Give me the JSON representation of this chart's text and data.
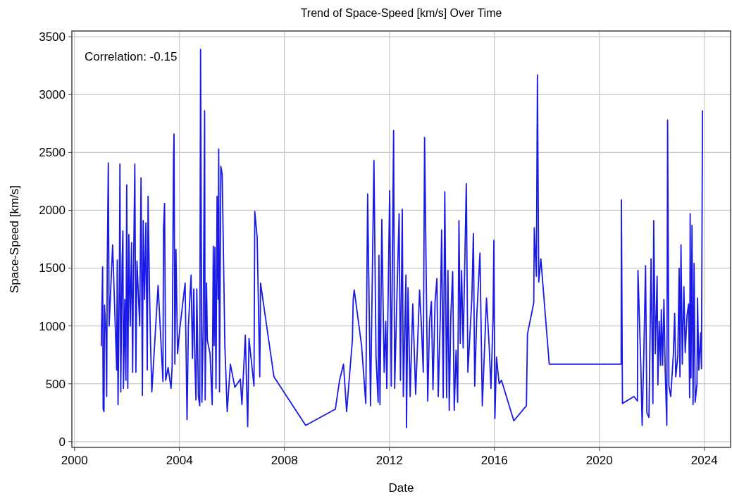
{
  "chart_data": {
    "type": "line",
    "title": "Trend of Space-Speed [km/s] Over Time",
    "xlabel": "Date",
    "ylabel": "Space-Speed [km/s]",
    "annotations": [
      "Correlation: -0.15"
    ],
    "xlim": [
      1999.9,
      2025
    ],
    "xticks": [
      2000,
      2004,
      2008,
      2012,
      2016,
      2020,
      2024
    ],
    "ylim": [
      -50,
      3550
    ],
    "yticks": [
      0,
      500,
      1000,
      1500,
      2000,
      2500,
      3000,
      3500
    ],
    "grid": true,
    "line_style": "solid",
    "series": [
      {
        "color": "#1a1ae6",
        "x": [
          2001.021,
          2001.072,
          2001.093,
          2001.124,
          2001.144,
          2001.196,
          2001.227,
          2001.247,
          2001.289,
          2001.32,
          2001.454,
          2001.608,
          2001.629,
          2001.66,
          2001.711,
          2001.732,
          2001.763,
          2001.814,
          2001.845,
          2001.866,
          2001.918,
          2001.959,
          2001.99,
          2002.031,
          2002.072,
          2002.124,
          2002.175,
          2002.216,
          2002.237,
          2002.299,
          2002.34,
          2002.381,
          2002.443,
          2002.485,
          2002.536,
          2002.588,
          2002.619,
          2002.67,
          2002.722,
          2002.773,
          2002.804,
          2002.856,
          2002.897,
          2002.948,
          2003.186,
          2003.371,
          2003.392,
          2003.433,
          2003.474,
          2003.567,
          2003.68,
          2003.722,
          2003.773,
          2003.794,
          2003.825,
          2003.866,
          2003.928,
          2004.01,
          2004.216,
          2004.289,
          2004.34,
          2004.443,
          2004.495,
          2004.546,
          2004.588,
          2004.629,
          2004.66,
          2004.722,
          2004.773,
          2004.804,
          2004.856,
          2004.907,
          2004.959,
          2004.979,
          2005.031,
          2005.062,
          2005.165,
          2005.247,
          2005.289,
          2005.32,
          2005.351,
          2005.392,
          2005.433,
          2005.474,
          2005.495,
          2005.526,
          2005.577,
          2005.629,
          2005.73,
          2005.82,
          2005.94,
          2006.11,
          2006.32,
          2006.38,
          2006.51,
          2006.6,
          2006.65,
          2006.84,
          2006.87,
          2006.96,
          2007.06,
          2007.09,
          2007.6,
          2008.81,
          2009.94,
          2010.1,
          2010.25,
          2010.37,
          2010.43,
          2010.59,
          2010.62,
          2010.66,
          2010.94,
          2011.1,
          2011.17,
          2011.28,
          2011.41,
          2011.49,
          2011.57,
          2011.6,
          2011.64,
          2011.71,
          2011.8,
          2011.86,
          2011.9,
          2012.01,
          2012.07,
          2012.16,
          2012.2,
          2012.27,
          2012.37,
          2012.42,
          2012.49,
          2012.53,
          2012.63,
          2012.65,
          2012.71,
          2012.79,
          2012.89,
          2013.0,
          2013.15,
          2013.22,
          2013.29,
          2013.34,
          2013.4,
          2013.46,
          2013.53,
          2013.6,
          2013.66,
          2013.74,
          2013.81,
          2013.86,
          2013.94,
          2013.99,
          2014.05,
          2014.11,
          2014.18,
          2014.23,
          2014.28,
          2014.34,
          2014.41,
          2014.47,
          2014.54,
          2014.6,
          2014.65,
          2014.7,
          2014.75,
          2014.81,
          2014.93,
          2014.99,
          2015.14,
          2015.2,
          2015.25,
          2015.33,
          2015.45,
          2015.54,
          2015.7,
          2015.8,
          2015.87,
          2015.95,
          2015.98,
          2016.02,
          2016.08,
          2016.18,
          2016.27,
          2016.74,
          2017.22,
          2017.26,
          2017.5,
          2017.52,
          2017.6,
          2017.64,
          2017.69,
          2017.77,
          2018.09,
          2020.83,
          2020.84,
          2020.88,
          2021.32,
          2021.45,
          2021.47,
          2021.58,
          2021.63,
          2021.69,
          2021.76,
          2021.81,
          2021.89,
          2021.97,
          2022.04,
          2022.07,
          2022.13,
          2022.2,
          2022.23,
          2022.28,
          2022.33,
          2022.36,
          2022.41,
          2022.46,
          2022.51,
          2022.57,
          2022.6,
          2022.65,
          2022.72,
          2022.82,
          2022.87,
          2022.91,
          2022.99,
          2023.04,
          2023.07,
          2023.11,
          2023.16,
          2023.22,
          2023.27,
          2023.34,
          2023.4,
          2023.44,
          2023.46,
          2023.49,
          2023.53,
          2023.57,
          2023.61,
          2023.65,
          2023.72,
          2023.74,
          2023.79,
          2023.86,
          2023.89,
          2023.93
        ],
        "values": [
          830,
          1510,
          280,
          260,
          1180,
          950,
          390,
          1480,
          2410,
          1000,
          1700,
          620,
          1570,
          320,
          1440,
          2400,
          430,
          1540,
          1820,
          460,
          1230,
          530,
          2220,
          460,
          1790,
          1000,
          1720,
          600,
          1230,
          2400,
          600,
          1560,
          1230,
          1000,
          2280,
          400,
          1910,
          1230,
          1890,
          620,
          2120,
          1350,
          860,
          430,
          1350,
          520,
          1840,
          2060,
          530,
          640,
          460,
          660,
          2450,
          2660,
          670,
          1660,
          760,
          970,
          1370,
          190,
          1000,
          1440,
          720,
          1320,
          690,
          360,
          1320,
          390,
          310,
          3390,
          340,
          1000,
          2860,
          360,
          1370,
          880,
          760,
          320,
          1690,
          830,
          1680,
          460,
          2120,
          1230,
          2530,
          430,
          2380,
          2310,
          830,
          260,
          670,
          470,
          540,
          320,
          920,
          130,
          890,
          480,
          1990,
          1770,
          560,
          1370,
          560,
          140,
          280,
          530,
          670,
          260,
          430,
          880,
          1230,
          1310,
          830,
          330,
          2140,
          310,
          2430,
          730,
          340,
          1610,
          320,
          1920,
          600,
          1040,
          460,
          2170,
          480,
          2690,
          460,
          1110,
          1970,
          530,
          2010,
          390,
          1440,
          120,
          1330,
          390,
          1190,
          410,
          1310,
          1000,
          600,
          2630,
          1470,
          350,
          1040,
          1210,
          450,
          1210,
          1410,
          390,
          1090,
          1830,
          380,
          2160,
          380,
          1480,
          270,
          1090,
          1470,
          270,
          790,
          340,
          1910,
          850,
          1480,
          810,
          2230,
          600,
          1230,
          1800,
          480,
          1090,
          1630,
          310,
          1240,
          830,
          460,
          1090,
          1740,
          200,
          730,
          500,
          530,
          180,
          310,
          930,
          1200,
          1850,
          1430,
          3170,
          1380,
          1580,
          670,
          670,
          2090,
          330,
          390,
          350,
          1480,
          650,
          140,
          720,
          1520,
          250,
          210,
          1580,
          330,
          1910,
          760,
          1430,
          490,
          1040,
          660,
          1140,
          660,
          1230,
          600,
          140,
          2780,
          480,
          390,
          760,
          1110,
          560,
          740,
          1500,
          560,
          1700,
          670,
          1340,
          770,
          1090,
          1190,
          380,
          1970,
          550,
          1870,
          320,
          1540,
          340,
          500,
          1240,
          620,
          940,
          630,
          2860
        ]
      }
    ]
  }
}
